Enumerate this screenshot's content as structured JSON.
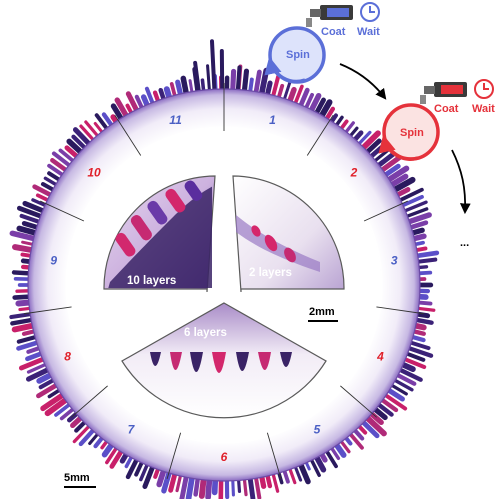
{
  "colors": {
    "blue": "#5b6fd8",
    "red": "#e5323b",
    "purple": "#3a1a6e",
    "magenta": "#c8206a",
    "numBlue": "#4a5fc4",
    "numRed": "#e0202a"
  },
  "ring": {
    "sectors": [
      {
        "label": "1",
        "color": "blue"
      },
      {
        "label": "2",
        "color": "red"
      },
      {
        "label": "3",
        "color": "blue"
      },
      {
        "label": "4",
        "color": "red"
      },
      {
        "label": "5",
        "color": "blue"
      },
      {
        "label": "6",
        "color": "red"
      },
      {
        "label": "7",
        "color": "blue"
      },
      {
        "label": "8",
        "color": "red"
      },
      {
        "label": "9",
        "color": "blue"
      },
      {
        "label": "10",
        "color": "red"
      },
      {
        "label": "11",
        "color": "blue"
      }
    ]
  },
  "insets": {
    "left_label": "10 layers",
    "right_label": "2 layers",
    "bottom_label": "6 layers",
    "inset_scale": "2mm"
  },
  "scale_bar": "5mm",
  "process": {
    "step1": {
      "spin": "Spin",
      "coat": "Coat",
      "wait": "Wait"
    },
    "step2": {
      "spin": "Spin",
      "coat": "Coat",
      "wait": "Wait"
    },
    "ellipsis": "..."
  }
}
